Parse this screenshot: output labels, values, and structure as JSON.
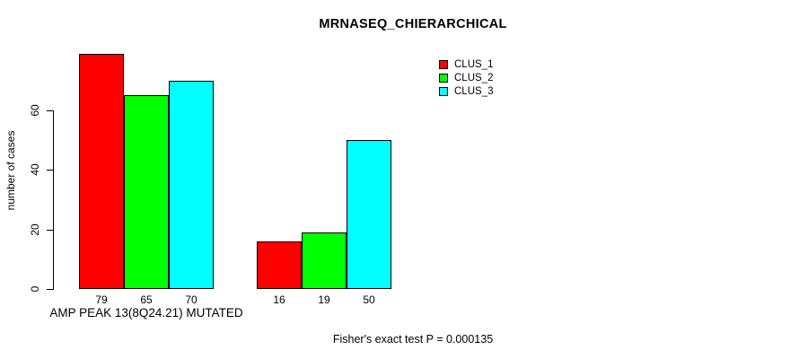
{
  "page": {
    "background_color": "#ffffff",
    "text_color": "#000000"
  },
  "chart_data": {
    "type": "bar",
    "title": "MRNASEQ_CHIERARCHICAL",
    "ylabel": "number of cases",
    "xlabel": "",
    "yticks": [
      0,
      20,
      40,
      60
    ],
    "ylim": [
      0,
      79
    ],
    "grid": false,
    "legend_position": "top-right",
    "bar_border_color": "#000000",
    "series": [
      {
        "name": "CLUS_1",
        "color": "#ff0000"
      },
      {
        "name": "CLUS_2",
        "color": "#00ff00"
      },
      {
        "name": "CLUS_3",
        "color": "#00ffff"
      }
    ],
    "categories": [
      "AMP PEAK 13(8Q24.21) MUTATED",
      ""
    ],
    "groups": [
      {
        "label": "AMP PEAK 13(8Q24.21) MUTATED",
        "values": [
          79,
          65,
          70
        ]
      },
      {
        "label": "",
        "values": [
          16,
          19,
          50
        ]
      }
    ],
    "annotation": "Fisher's exact test P = 0.000135"
  }
}
